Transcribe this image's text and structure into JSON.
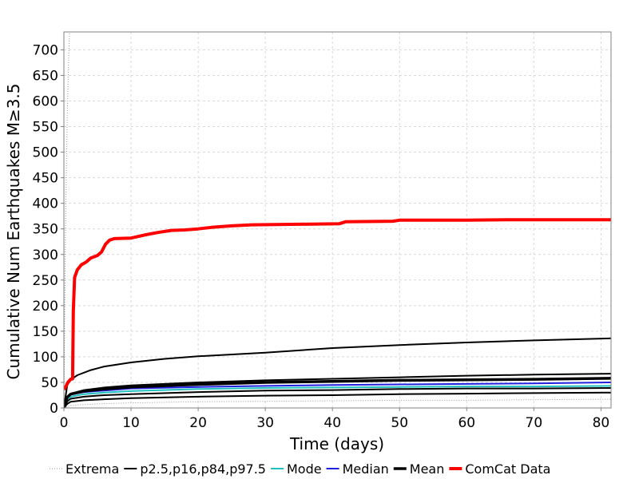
{
  "chart_data": {
    "type": "line",
    "title": "",
    "xlabel": "Time (days)",
    "ylabel": "Cumulative Num Earthquakes M≥3.5",
    "xlim": [
      0,
      81.5
    ],
    "ylim": [
      0,
      735
    ],
    "grid": true,
    "legend_position": "bottom",
    "xticks": [
      0,
      10,
      20,
      30,
      40,
      50,
      60,
      70,
      80
    ],
    "yticks": [
      0,
      50,
      100,
      150,
      200,
      250,
      300,
      350,
      400,
      450,
      500,
      550,
      600,
      650,
      700
    ],
    "series": [
      {
        "name": "Extrema",
        "color": "#999999",
        "style": "dotted-thin",
        "legend": true,
        "points": [
          [
            0,
            0
          ],
          [
            0.1,
            150
          ],
          [
            0.2,
            300
          ],
          [
            0.35,
            450
          ],
          [
            0.5,
            570
          ],
          [
            0.7,
            680
          ],
          [
            0.85,
            735
          ]
        ]
      },
      {
        "name": "Extrema",
        "color": "#999999",
        "style": "dotted-thin",
        "legend": false,
        "points": [
          [
            0,
            0
          ],
          [
            1,
            5
          ],
          [
            5,
            8
          ],
          [
            10,
            10
          ],
          [
            20,
            12
          ],
          [
            30,
            13
          ],
          [
            40,
            14
          ],
          [
            50,
            15
          ],
          [
            60,
            15
          ],
          [
            70,
            16
          ],
          [
            81.5,
            17
          ]
        ]
      },
      {
        "name": "p2.5,p16,p84,p97.5",
        "color": "#000000",
        "style": "solid",
        "legend": true,
        "points": [
          [
            0,
            0
          ],
          [
            0.5,
            45
          ],
          [
            1,
            55
          ],
          [
            2,
            64
          ],
          [
            4,
            74
          ],
          [
            6,
            81
          ],
          [
            10,
            89
          ],
          [
            15,
            96
          ],
          [
            20,
            101
          ],
          [
            30,
            108
          ],
          [
            40,
            117
          ],
          [
            50,
            123
          ],
          [
            60,
            128
          ],
          [
            70,
            132
          ],
          [
            81.5,
            136
          ]
        ]
      },
      {
        "name": "p2.5,p16,p84,p97.5",
        "color": "#000000",
        "style": "solid",
        "legend": false,
        "points": [
          [
            0,
            0
          ],
          [
            0.5,
            22
          ],
          [
            1,
            28
          ],
          [
            3,
            35
          ],
          [
            6,
            40
          ],
          [
            10,
            44
          ],
          [
            20,
            50
          ],
          [
            30,
            54
          ],
          [
            40,
            57
          ],
          [
            50,
            60
          ],
          [
            60,
            63
          ],
          [
            70,
            65
          ],
          [
            81.5,
            67
          ]
        ]
      },
      {
        "name": "p2.5,p16,p84,p97.5",
        "color": "#000000",
        "style": "solid",
        "legend": false,
        "points": [
          [
            0,
            0
          ],
          [
            0.5,
            13
          ],
          [
            1,
            18
          ],
          [
            3,
            22
          ],
          [
            6,
            25
          ],
          [
            10,
            27
          ],
          [
            20,
            31
          ],
          [
            30,
            34
          ],
          [
            40,
            35
          ],
          [
            50,
            37
          ],
          [
            60,
            38
          ],
          [
            70,
            38
          ],
          [
            81.5,
            39
          ]
        ]
      },
      {
        "name": "p2.5,p16,p84,p97.5",
        "color": "#000000",
        "style": "solid",
        "legend": false,
        "points": [
          [
            0,
            0
          ],
          [
            0.5,
            8
          ],
          [
            1,
            12
          ],
          [
            3,
            15
          ],
          [
            6,
            17
          ],
          [
            10,
            19
          ],
          [
            20,
            22
          ],
          [
            30,
            24
          ],
          [
            40,
            25
          ],
          [
            50,
            27
          ],
          [
            60,
            28
          ],
          [
            70,
            29
          ],
          [
            81.5,
            30
          ]
        ]
      },
      {
        "name": "Mode",
        "color": "#20c0c0",
        "style": "solid",
        "legend": true,
        "points": [
          [
            0,
            0
          ],
          [
            0.5,
            17
          ],
          [
            1,
            22
          ],
          [
            3,
            27
          ],
          [
            6,
            30
          ],
          [
            10,
            33
          ],
          [
            20,
            37
          ],
          [
            30,
            39
          ],
          [
            40,
            40
          ],
          [
            50,
            41
          ],
          [
            60,
            42
          ],
          [
            70,
            42
          ],
          [
            81.5,
            43
          ]
        ]
      },
      {
        "name": "Median",
        "color": "#2020e0",
        "style": "solid",
        "legend": true,
        "points": [
          [
            0,
            0
          ],
          [
            0.5,
            20
          ],
          [
            1,
            26
          ],
          [
            3,
            31
          ],
          [
            6,
            34
          ],
          [
            10,
            38
          ],
          [
            20,
            41
          ],
          [
            30,
            43
          ],
          [
            40,
            45
          ],
          [
            50,
            46
          ],
          [
            60,
            47
          ],
          [
            70,
            48
          ],
          [
            81.5,
            50
          ]
        ]
      },
      {
        "name": "Mean",
        "color": "#000000",
        "style": "thick",
        "legend": true,
        "points": [
          [
            0,
            0
          ],
          [
            0.5,
            21
          ],
          [
            1,
            27
          ],
          [
            3,
            33
          ],
          [
            6,
            37
          ],
          [
            10,
            41
          ],
          [
            20,
            46
          ],
          [
            30,
            50
          ],
          [
            40,
            52
          ],
          [
            50,
            54
          ],
          [
            60,
            55
          ],
          [
            70,
            56
          ],
          [
            81.5,
            58
          ]
        ]
      },
      {
        "name": "ComCat Data",
        "color": "#ff0000",
        "style": "thick-red",
        "legend": true,
        "points": [
          [
            0,
            36
          ],
          [
            0.3,
            42
          ],
          [
            0.6,
            50
          ],
          [
            1,
            56
          ],
          [
            1.3,
            57
          ],
          [
            1.4,
            190
          ],
          [
            1.6,
            255
          ],
          [
            2,
            270
          ],
          [
            2.6,
            280
          ],
          [
            3.3,
            285
          ],
          [
            4,
            293
          ],
          [
            5,
            298
          ],
          [
            5.6,
            305
          ],
          [
            6.2,
            320
          ],
          [
            6.8,
            328
          ],
          [
            7.5,
            331
          ],
          [
            10,
            332
          ],
          [
            12,
            338
          ],
          [
            14,
            343
          ],
          [
            16,
            347
          ],
          [
            18,
            348
          ],
          [
            20,
            350
          ],
          [
            22,
            353
          ],
          [
            25,
            356
          ],
          [
            28,
            358
          ],
          [
            35,
            359
          ],
          [
            41,
            360
          ],
          [
            42,
            364
          ],
          [
            49,
            365
          ],
          [
            50,
            367
          ],
          [
            60,
            367
          ],
          [
            66,
            368
          ],
          [
            81.5,
            368
          ]
        ]
      }
    ]
  }
}
